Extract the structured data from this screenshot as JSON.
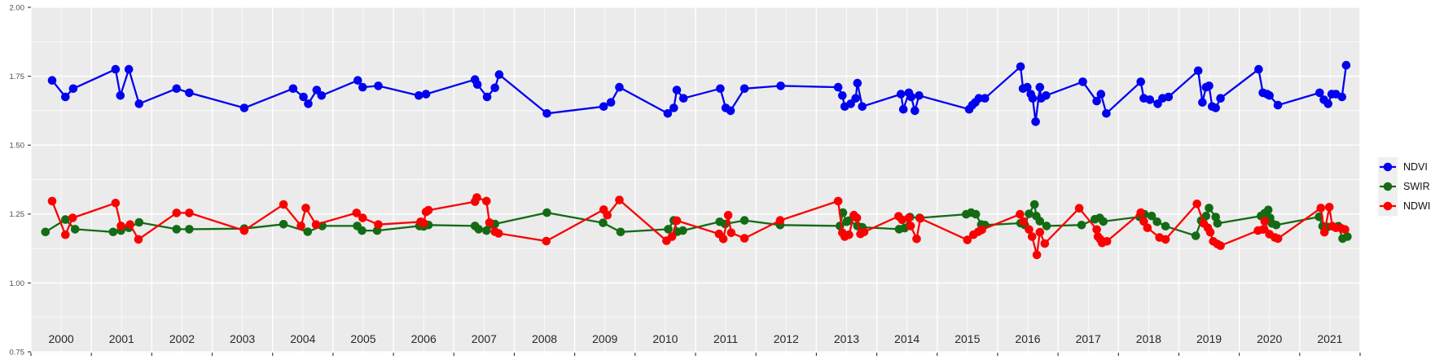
{
  "theme": {
    "panel_bg": "#EBEBEB",
    "grid_color": "#FFFFFF",
    "axis_text_color": "#4D4D4D",
    "year_text_color": "#262626",
    "tick_color": "#333333",
    "legend_key_bg": "#EFEFEF"
  },
  "chart_data": {
    "type": "line",
    "title": "",
    "xlabel": "",
    "ylabel": "",
    "x_axis": {
      "tick_years": [
        2000,
        2001,
        2002,
        2003,
        2004,
        2005,
        2006,
        2007,
        2008,
        2009,
        2010,
        2011,
        2012,
        2013,
        2014,
        2015,
        2016,
        2017,
        2018,
        2019,
        2020,
        2021
      ],
      "range": [
        2000,
        2022
      ],
      "grid": true
    },
    "y_axis": {
      "tick_labels": [
        "2.00",
        "1.75",
        "1.50",
        "1.25",
        "1.00",
        "0.75"
      ],
      "tick_values": [
        2.0,
        1.75,
        1.5,
        1.25,
        1.0,
        0.75
      ],
      "range": [
        0.75,
        2.0
      ],
      "grid": true
    },
    "legend": {
      "position": "right",
      "entries": [
        {
          "label": "NDVI",
          "color": "#0202F0"
        },
        {
          "label": "SWIR",
          "color": "#146B14"
        },
        {
          "label": "NDWI",
          "color": "#FA0000"
        }
      ]
    },
    "series": [
      {
        "name": "NDVI",
        "color": "#0202F0",
        "points": [
          [
            2000.35,
            1.735
          ],
          [
            2000.57,
            1.675
          ],
          [
            2000.7,
            1.705
          ],
          [
            2001.4,
            1.775
          ],
          [
            2001.48,
            1.68
          ],
          [
            2001.62,
            1.775
          ],
          [
            2001.79,
            1.65
          ],
          [
            2002.41,
            1.705
          ],
          [
            2002.62,
            1.69
          ],
          [
            2003.53,
            1.635
          ],
          [
            2004.34,
            1.705
          ],
          [
            2004.51,
            1.675
          ],
          [
            2004.59,
            1.65
          ],
          [
            2004.73,
            1.7
          ],
          [
            2004.81,
            1.68
          ],
          [
            2005.41,
            1.735
          ],
          [
            2005.49,
            1.71
          ],
          [
            2005.75,
            1.715
          ],
          [
            2006.42,
            1.68
          ],
          [
            2006.54,
            1.685
          ],
          [
            2007.35,
            1.738
          ],
          [
            2007.39,
            1.72
          ],
          [
            2007.55,
            1.675
          ],
          [
            2007.68,
            1.708
          ],
          [
            2007.75,
            1.756
          ],
          [
            2008.54,
            1.615
          ],
          [
            2009.48,
            1.64
          ],
          [
            2009.6,
            1.655
          ],
          [
            2009.74,
            1.71
          ],
          [
            2010.54,
            1.615
          ],
          [
            2010.64,
            1.635
          ],
          [
            2010.69,
            1.7
          ],
          [
            2010.8,
            1.67
          ],
          [
            2011.41,
            1.705
          ],
          [
            2011.5,
            1.635
          ],
          [
            2011.58,
            1.625
          ],
          [
            2011.81,
            1.705
          ],
          [
            2012.41,
            1.715
          ],
          [
            2013.36,
            1.71
          ],
          [
            2013.43,
            1.68
          ],
          [
            2013.47,
            1.64
          ],
          [
            2013.57,
            1.65
          ],
          [
            2013.65,
            1.67
          ],
          [
            2013.68,
            1.725
          ],
          [
            2013.76,
            1.64
          ],
          [
            2014.4,
            1.685
          ],
          [
            2014.44,
            1.63
          ],
          [
            2014.53,
            1.69
          ],
          [
            2014.57,
            1.675
          ],
          [
            2014.63,
            1.625
          ],
          [
            2014.7,
            1.68
          ],
          [
            2015.53,
            1.63
          ],
          [
            2015.58,
            1.645
          ],
          [
            2015.63,
            1.655
          ],
          [
            2015.69,
            1.67
          ],
          [
            2015.79,
            1.67
          ],
          [
            2016.38,
            1.785
          ],
          [
            2016.42,
            1.705
          ],
          [
            2016.49,
            1.71
          ],
          [
            2016.55,
            1.685
          ],
          [
            2016.58,
            1.67
          ],
          [
            2016.63,
            1.585
          ],
          [
            2016.7,
            1.71
          ],
          [
            2016.72,
            1.67
          ],
          [
            2016.8,
            1.68
          ],
          [
            2017.41,
            1.73
          ],
          [
            2017.64,
            1.66
          ],
          [
            2017.71,
            1.685
          ],
          [
            2017.8,
            1.615
          ],
          [
            2018.37,
            1.73
          ],
          [
            2018.42,
            1.67
          ],
          [
            2018.52,
            1.665
          ],
          [
            2018.65,
            1.65
          ],
          [
            2018.73,
            1.67
          ],
          [
            2018.83,
            1.675
          ],
          [
            2019.32,
            1.77
          ],
          [
            2019.39,
            1.655
          ],
          [
            2019.45,
            1.71
          ],
          [
            2019.5,
            1.715
          ],
          [
            2019.55,
            1.64
          ],
          [
            2019.61,
            1.635
          ],
          [
            2019.69,
            1.67
          ],
          [
            2020.32,
            1.775
          ],
          [
            2020.39,
            1.69
          ],
          [
            2020.46,
            1.685
          ],
          [
            2020.5,
            1.68
          ],
          [
            2020.64,
            1.645
          ],
          [
            2021.33,
            1.69
          ],
          [
            2021.4,
            1.665
          ],
          [
            2021.47,
            1.65
          ],
          [
            2021.53,
            1.685
          ],
          [
            2021.6,
            1.685
          ],
          [
            2021.7,
            1.675
          ],
          [
            2021.77,
            1.79
          ]
        ]
      },
      {
        "name": "SWIR",
        "color": "#146B14",
        "points": [
          [
            2000.24,
            1.185
          ],
          [
            2000.57,
            1.23
          ],
          [
            2000.73,
            1.195
          ],
          [
            2001.36,
            1.185
          ],
          [
            2001.49,
            1.19
          ],
          [
            2001.62,
            1.2
          ],
          [
            2001.79,
            1.22
          ],
          [
            2002.41,
            1.195
          ],
          [
            2002.62,
            1.195
          ],
          [
            2003.53,
            1.197
          ],
          [
            2004.18,
            1.213
          ],
          [
            2004.58,
            1.186
          ],
          [
            2004.82,
            1.207
          ],
          [
            2005.4,
            1.207
          ],
          [
            2005.48,
            1.19
          ],
          [
            2005.73,
            1.19
          ],
          [
            2006.43,
            1.207
          ],
          [
            2006.5,
            1.205
          ],
          [
            2006.58,
            1.21
          ],
          [
            2007.35,
            1.207
          ],
          [
            2007.41,
            1.195
          ],
          [
            2007.54,
            1.19
          ],
          [
            2007.6,
            1.212
          ],
          [
            2007.68,
            1.214
          ],
          [
            2008.54,
            1.255
          ],
          [
            2009.47,
            1.218
          ],
          [
            2009.76,
            1.185
          ],
          [
            2010.55,
            1.195
          ],
          [
            2010.64,
            1.227
          ],
          [
            2010.7,
            1.186
          ],
          [
            2010.79,
            1.19
          ],
          [
            2011.4,
            1.222
          ],
          [
            2011.49,
            1.214
          ],
          [
            2011.81,
            1.227
          ],
          [
            2012.4,
            1.21
          ],
          [
            2013.39,
            1.207
          ],
          [
            2013.44,
            1.255
          ],
          [
            2013.5,
            1.222
          ],
          [
            2013.54,
            1.226
          ],
          [
            2013.68,
            1.207
          ],
          [
            2013.76,
            1.202
          ],
          [
            2014.37,
            1.195
          ],
          [
            2014.46,
            1.199
          ],
          [
            2014.55,
            1.239
          ],
          [
            2014.71,
            1.236
          ],
          [
            2015.48,
            1.249
          ],
          [
            2015.56,
            1.255
          ],
          [
            2015.64,
            1.249
          ],
          [
            2015.73,
            1.212
          ],
          [
            2015.79,
            1.21
          ],
          [
            2016.38,
            1.217
          ],
          [
            2016.45,
            1.21
          ],
          [
            2016.52,
            1.251
          ],
          [
            2016.61,
            1.285
          ],
          [
            2016.64,
            1.243
          ],
          [
            2016.7,
            1.224
          ],
          [
            2016.81,
            1.207
          ],
          [
            2017.39,
            1.21
          ],
          [
            2017.61,
            1.231
          ],
          [
            2017.69,
            1.236
          ],
          [
            2017.75,
            1.223
          ],
          [
            2018.35,
            1.24
          ],
          [
            2018.43,
            1.249
          ],
          [
            2018.55,
            1.243
          ],
          [
            2018.64,
            1.222
          ],
          [
            2018.78,
            1.206
          ],
          [
            2019.28,
            1.171
          ],
          [
            2019.37,
            1.226
          ],
          [
            2019.45,
            1.243
          ],
          [
            2019.5,
            1.272
          ],
          [
            2019.61,
            1.239
          ],
          [
            2019.64,
            1.216
          ],
          [
            2020.36,
            1.243
          ],
          [
            2020.42,
            1.253
          ],
          [
            2020.48,
            1.265
          ],
          [
            2020.51,
            1.236
          ],
          [
            2020.54,
            1.216
          ],
          [
            2020.61,
            1.21
          ],
          [
            2021.32,
            1.24
          ],
          [
            2021.38,
            1.206
          ],
          [
            2021.46,
            1.203
          ],
          [
            2021.64,
            1.206
          ],
          [
            2021.71,
            1.161
          ],
          [
            2021.79,
            1.168
          ]
        ]
      },
      {
        "name": "NDWI",
        "color": "#FA0000",
        "points": [
          [
            2000.35,
            1.297
          ],
          [
            2000.57,
            1.175
          ],
          [
            2000.69,
            1.236
          ],
          [
            2001.4,
            1.29
          ],
          [
            2001.49,
            1.207
          ],
          [
            2001.64,
            1.212
          ],
          [
            2001.78,
            1.158
          ],
          [
            2002.41,
            1.254
          ],
          [
            2002.62,
            1.254
          ],
          [
            2003.53,
            1.19
          ],
          [
            2004.18,
            1.285
          ],
          [
            2004.47,
            1.207
          ],
          [
            2004.55,
            1.272
          ],
          [
            2004.72,
            1.212
          ],
          [
            2005.39,
            1.254
          ],
          [
            2005.49,
            1.236
          ],
          [
            2005.75,
            1.212
          ],
          [
            2006.45,
            1.222
          ],
          [
            2006.5,
            1.217
          ],
          [
            2006.54,
            1.258
          ],
          [
            2006.58,
            1.264
          ],
          [
            2007.35,
            1.295
          ],
          [
            2007.38,
            1.31
          ],
          [
            2007.54,
            1.297
          ],
          [
            2007.59,
            1.219
          ],
          [
            2007.68,
            1.186
          ],
          [
            2007.74,
            1.18
          ],
          [
            2008.53,
            1.152
          ],
          [
            2009.48,
            1.266
          ],
          [
            2009.54,
            1.246
          ],
          [
            2009.74,
            1.301
          ],
          [
            2010.52,
            1.153
          ],
          [
            2010.61,
            1.168
          ],
          [
            2010.69,
            1.226
          ],
          [
            2011.39,
            1.178
          ],
          [
            2011.46,
            1.16
          ],
          [
            2011.54,
            1.246
          ],
          [
            2011.59,
            1.182
          ],
          [
            2011.81,
            1.162
          ],
          [
            2012.4,
            1.227
          ],
          [
            2013.36,
            1.297
          ],
          [
            2013.43,
            1.182
          ],
          [
            2013.47,
            1.168
          ],
          [
            2013.54,
            1.175
          ],
          [
            2013.62,
            1.246
          ],
          [
            2013.67,
            1.236
          ],
          [
            2013.73,
            1.178
          ],
          [
            2013.79,
            1.185
          ],
          [
            2014.36,
            1.242
          ],
          [
            2014.42,
            1.229
          ],
          [
            2014.53,
            1.236
          ],
          [
            2014.56,
            1.207
          ],
          [
            2014.66,
            1.16
          ],
          [
            2014.72,
            1.234
          ],
          [
            2015.5,
            1.156
          ],
          [
            2015.6,
            1.175
          ],
          [
            2015.68,
            1.186
          ],
          [
            2015.74,
            1.193
          ],
          [
            2016.37,
            1.249
          ],
          [
            2016.43,
            1.223
          ],
          [
            2016.52,
            1.194
          ],
          [
            2016.57,
            1.168
          ],
          [
            2016.65,
            1.102
          ],
          [
            2016.7,
            1.184
          ],
          [
            2016.78,
            1.143
          ],
          [
            2017.35,
            1.271
          ],
          [
            2017.64,
            1.194
          ],
          [
            2017.66,
            1.168
          ],
          [
            2017.7,
            1.158
          ],
          [
            2017.73,
            1.145
          ],
          [
            2017.81,
            1.151
          ],
          [
            2018.37,
            1.255
          ],
          [
            2018.42,
            1.223
          ],
          [
            2018.48,
            1.2
          ],
          [
            2018.68,
            1.165
          ],
          [
            2018.78,
            1.158
          ],
          [
            2019.3,
            1.287
          ],
          [
            2019.41,
            1.216
          ],
          [
            2019.48,
            1.2
          ],
          [
            2019.52,
            1.184
          ],
          [
            2019.57,
            1.151
          ],
          [
            2019.64,
            1.141
          ],
          [
            2019.69,
            1.135
          ],
          [
            2020.31,
            1.19
          ],
          [
            2020.39,
            1.194
          ],
          [
            2020.42,
            1.224
          ],
          [
            2020.5,
            1.177
          ],
          [
            2020.59,
            1.165
          ],
          [
            2020.64,
            1.161
          ],
          [
            2021.35,
            1.272
          ],
          [
            2021.41,
            1.184
          ],
          [
            2021.49,
            1.275
          ],
          [
            2021.54,
            1.206
          ],
          [
            2021.6,
            1.2
          ],
          [
            2021.69,
            1.198
          ],
          [
            2021.75,
            1.194
          ]
        ]
      }
    ]
  }
}
